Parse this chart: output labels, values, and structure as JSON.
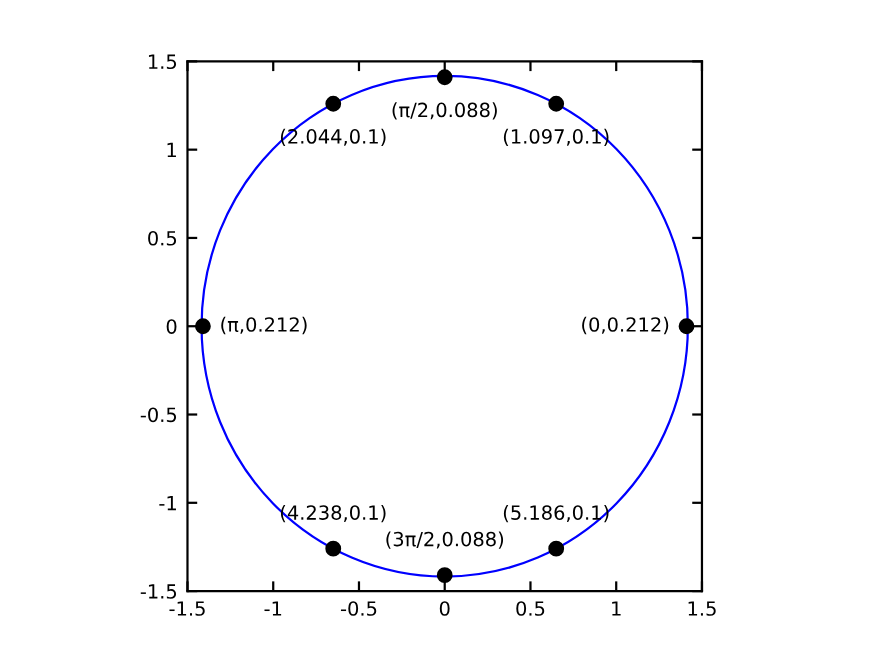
{
  "chart_data": {
    "type": "scatter",
    "xlim": [
      -1.5,
      1.5
    ],
    "ylim": [
      -1.5,
      1.5
    ],
    "xticks": [
      -1.5,
      -1,
      -0.5,
      0,
      0.5,
      1,
      1.5
    ],
    "yticks": [
      -1.5,
      -1,
      -0.5,
      0,
      0.5,
      1,
      1.5
    ],
    "grid": false,
    "legend": false,
    "series": [
      {
        "color": "#000000",
        "marker": "circle",
        "x": [
          0,
          -0.65,
          0.65,
          -1.41,
          1.41,
          -0.65,
          0,
          0.65
        ],
        "values": [
          1.41,
          1.26,
          1.26,
          0,
          0,
          -1.26,
          -1.41,
          -1.26
        ]
      }
    ],
    "annotations": [
      {
        "text": "(π/2,0.088)",
        "x": 0,
        "y": 1.41
      },
      {
        "text": "(2.044,0.1)",
        "x": -0.65,
        "y": 1.26
      },
      {
        "text": "(1.097,0.1)",
        "x": 0.65,
        "y": 1.26
      },
      {
        "text": "(π,0.212)",
        "x": -1.41,
        "y": 0
      },
      {
        "text": "(0,0.212)",
        "x": 1.41,
        "y": 0
      },
      {
        "text": "(4.238,0.1)",
        "x": -0.65,
        "y": -1.26
      },
      {
        "text": "(3π/2,0.088)",
        "x": 0,
        "y": -1.41
      },
      {
        "text": "(5.186,0.1)",
        "x": 0.65,
        "y": -1.26
      }
    ]
  }
}
